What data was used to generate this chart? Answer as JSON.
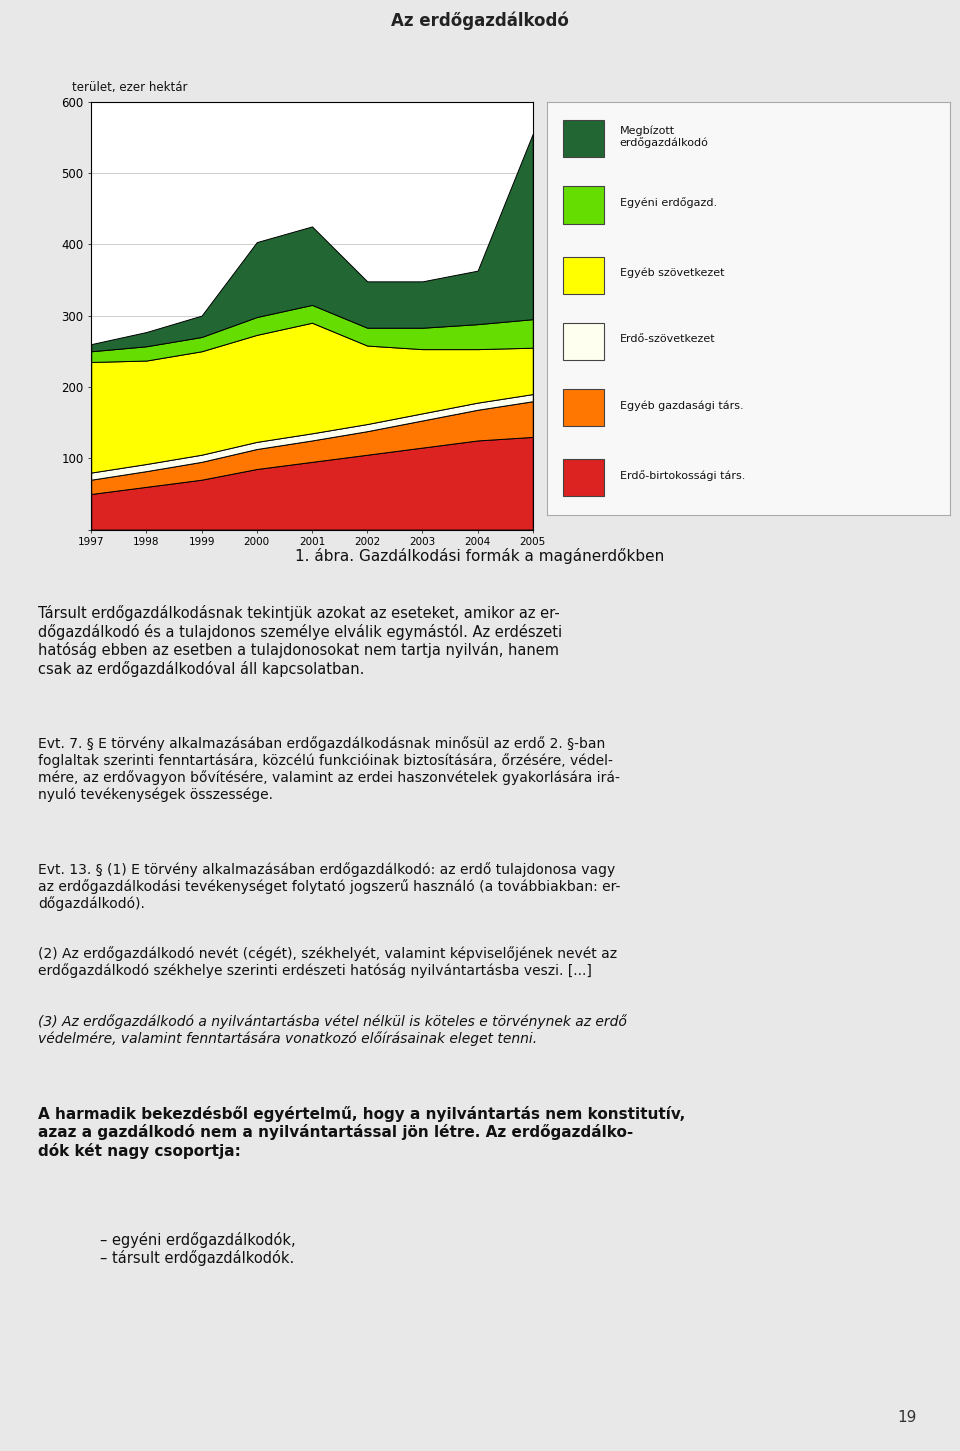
{
  "title": "Az erdőgazdálkodó",
  "ylabel": "terület, ezer hektár",
  "years": [
    1997,
    1998,
    1999,
    2000,
    2001,
    2002,
    2003,
    2004,
    2005
  ],
  "ylim": [
    0,
    600
  ],
  "yticks": [
    0,
    100,
    200,
    300,
    400,
    500,
    600
  ],
  "series_order": [
    "Erdő-birtokossági társ.",
    "Egyéb gazdasági társ.",
    "Erdő-szövetkezet",
    "Egyéb szövetkezet",
    "Egyéni erdőgazd.",
    "Megbízott erdőgazdálkodó"
  ],
  "series": {
    "Erdő-birtokossági társ.": {
      "color": "#dd2222",
      "values": [
        50,
        60,
        70,
        85,
        95,
        105,
        115,
        125,
        130
      ]
    },
    "Egyéb gazdasági társ.": {
      "color": "#ff7700",
      "values": [
        20,
        22,
        25,
        28,
        30,
        33,
        38,
        43,
        50
      ]
    },
    "Erdő-szövetkezet": {
      "color": "#fffff0",
      "values": [
        10,
        10,
        10,
        10,
        10,
        10,
        10,
        10,
        10
      ]
    },
    "Egyéb szövetkezet": {
      "color": "#ffff00",
      "values": [
        155,
        145,
        145,
        150,
        155,
        110,
        90,
        75,
        65
      ]
    },
    "Egyéni erdőgazd.": {
      "color": "#66dd00",
      "values": [
        15,
        20,
        20,
        25,
        25,
        25,
        30,
        35,
        40
      ]
    },
    "Megbízott erdőgazdálkodó": {
      "color": "#226633",
      "values": [
        10,
        20,
        30,
        105,
        110,
        65,
        65,
        75,
        260
      ]
    }
  },
  "legend_items": [
    {
      "label": "Megbízott\nerdőgazdálkodó",
      "color": "#226633"
    },
    {
      "label": "Egyéni erdőgazd.",
      "color": "#66dd00"
    },
    {
      "label": "Egyéb szövetkezet",
      "color": "#ffff00"
    },
    {
      "label": "Erdő-szövetkezet",
      "color": "#fffff0"
    },
    {
      "label": "Egyéb gazdasági társ.",
      "color": "#ff7700"
    },
    {
      "label": "Erdő-birtokossági társ.",
      "color": "#dd2222"
    }
  ],
  "page_bg": "#e8e8e8",
  "chart_area_bg": "#ffffff",
  "header_bg": "#b0b0b0",
  "page_number": "19"
}
